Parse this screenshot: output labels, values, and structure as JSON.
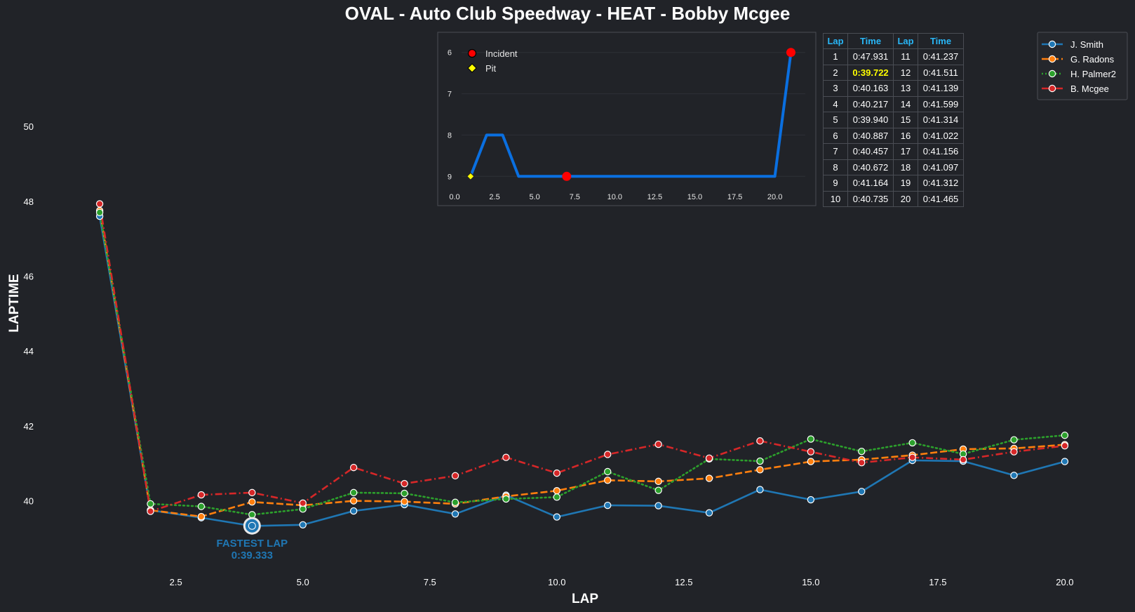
{
  "title": "OVAL - Auto Club Speedway - HEAT - Bobby Mcgee",
  "chart_data": [
    {
      "type": "line",
      "xlabel": "LAP",
      "ylabel": "LAPTIME",
      "xlim": [
        0.75,
        20.25
      ],
      "ylim": [
        38.1,
        51.5
      ],
      "x_ticks": [
        2.5,
        5.0,
        7.5,
        10.0,
        12.5,
        15.0,
        17.5,
        20.0
      ],
      "x_tick_labels": [
        "2.5",
        "5.0",
        "7.5",
        "10.0",
        "12.5",
        "15.0",
        "17.5",
        "20.0"
      ],
      "y_ticks": [
        40,
        42,
        44,
        46,
        48,
        50
      ],
      "y_tick_labels": [
        "40",
        "42",
        "44",
        "46",
        "48",
        "50"
      ],
      "legend_position": "top-right",
      "x": [
        1,
        2,
        3,
        4,
        5,
        6,
        7,
        8,
        9,
        10,
        11,
        12,
        13,
        14,
        15,
        16,
        17,
        18,
        19,
        20
      ],
      "series": [
        {
          "name": "J. Smith",
          "color": "#1f77b4",
          "linestyle": "solid",
          "values": [
            47.6,
            39.75,
            39.55,
            39.33,
            39.36,
            39.73,
            39.9,
            39.65,
            40.15,
            39.57,
            39.88,
            39.87,
            39.68,
            40.3,
            40.03,
            40.25,
            41.08,
            41.06,
            40.68,
            41.05
          ]
        },
        {
          "name": "G. Radons",
          "color": "#ff7f0e",
          "linestyle": "dashed",
          "values": [
            47.75,
            39.75,
            39.58,
            39.97,
            39.88,
            40.0,
            39.98,
            39.92,
            40.12,
            40.27,
            40.55,
            40.52,
            40.6,
            40.83,
            41.05,
            41.1,
            41.22,
            41.38,
            41.4,
            41.5
          ]
        },
        {
          "name": "H. Palmer2",
          "color": "#2ca02c",
          "linestyle": "dotted",
          "values": [
            47.7,
            39.92,
            39.85,
            39.63,
            39.78,
            40.22,
            40.2,
            39.96,
            40.05,
            40.1,
            40.78,
            40.28,
            41.12,
            41.06,
            41.65,
            41.32,
            41.55,
            41.25,
            41.63,
            41.75
          ]
        },
        {
          "name": "B. Mcgee",
          "color": "#d62728",
          "linestyle": "dashdot",
          "values": [
            47.93,
            39.72,
            40.16,
            40.22,
            39.94,
            40.89,
            40.46,
            40.67,
            41.16,
            40.74,
            41.24,
            41.51,
            41.14,
            41.6,
            41.31,
            41.02,
            41.16,
            41.1,
            41.31,
            41.47
          ]
        }
      ],
      "fastest_lap": {
        "lap": 4,
        "value": 39.333,
        "label": "FASTEST LAP",
        "time_text": "0:39.333",
        "color": "#1f77b4"
      }
    },
    {
      "type": "line",
      "xlim": [
        0.0,
        21.9
      ],
      "ylim": [
        9.25,
        5.75
      ],
      "y_inverted": true,
      "x_ticks": [
        0,
        2.5,
        5,
        7.5,
        10,
        12.5,
        15,
        17.5,
        20
      ],
      "x_tick_labels": [
        "0.0",
        "2.5",
        "5.0",
        "7.5",
        "10.0",
        "12.5",
        "15.0",
        "17.5",
        "20.0"
      ],
      "y_ticks": [
        6,
        7,
        8,
        9
      ],
      "y_tick_labels": [
        "6",
        "7",
        "8",
        "9"
      ],
      "line_color": "#0a6fe0",
      "x": [
        1,
        2,
        3,
        4,
        5,
        6,
        7,
        8,
        9,
        10,
        11,
        12,
        13,
        14,
        15,
        16,
        17,
        18,
        19,
        20,
        21
      ],
      "values": [
        9,
        8,
        8,
        9,
        9,
        9,
        9,
        9,
        9,
        9,
        9,
        9,
        9,
        9,
        9,
        9,
        9,
        9,
        9,
        9,
        6
      ],
      "incidents": [
        {
          "x": 7,
          "y": 9
        },
        {
          "x": 21,
          "y": 6
        }
      ],
      "pits": [
        {
          "x": 1,
          "y": 9
        }
      ],
      "legend": [
        {
          "label": "Incident",
          "marker": "circle",
          "color": "#ff0000"
        },
        {
          "label": "Pit",
          "marker": "diamond",
          "color": "#ffff00"
        }
      ]
    },
    {
      "type": "table",
      "headers": [
        "Lap",
        "Time",
        "Lap",
        "Time"
      ],
      "rows": [
        [
          "1",
          "0:47.931",
          "11",
          "0:41.237"
        ],
        [
          "2",
          "0:39.722",
          "12",
          "0:41.511"
        ],
        [
          "3",
          "0:40.163",
          "13",
          "0:41.139"
        ],
        [
          "4",
          "0:40.217",
          "14",
          "0:41.599"
        ],
        [
          "5",
          "0:39.940",
          "15",
          "0:41.314"
        ],
        [
          "6",
          "0:40.887",
          "16",
          "0:41.022"
        ],
        [
          "7",
          "0:40.457",
          "17",
          "0:41.156"
        ],
        [
          "8",
          "0:40.672",
          "18",
          "0:41.097"
        ],
        [
          "9",
          "0:41.164",
          "19",
          "0:41.312"
        ],
        [
          "10",
          "0:40.735",
          "20",
          "0:41.465"
        ]
      ],
      "highlight_cell": {
        "row": 1,
        "col": 1,
        "color": "#ffff00"
      },
      "header_color": "#29b6f6"
    }
  ]
}
